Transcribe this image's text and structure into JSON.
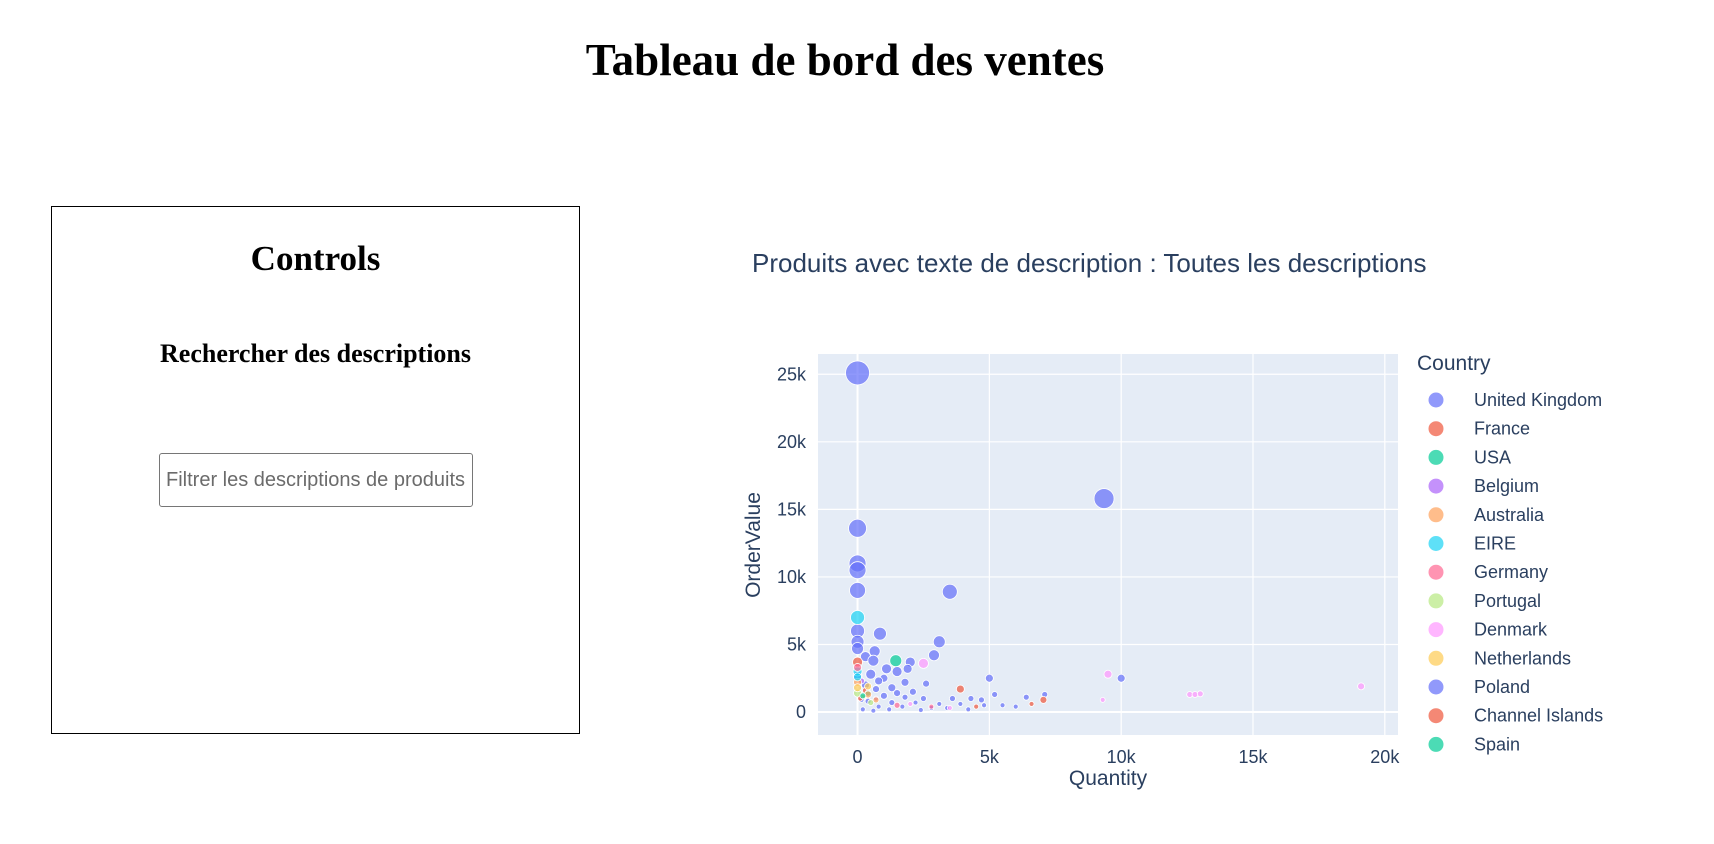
{
  "header": {
    "title": "Tableau de bord des ventes"
  },
  "controls": {
    "title": "Controls",
    "search_label": "Rechercher des descriptions",
    "search_placeholder": "Filtrer les descriptions de produits",
    "search_value": ""
  },
  "chart_data": {
    "type": "scatter",
    "title": "Produits avec texte de description : Toutes les descriptions",
    "xlabel": "Quantity",
    "ylabel": "OrderValue",
    "xlim": [
      -1500,
      20500
    ],
    "ylim": [
      -1700,
      26500
    ],
    "x_ticks": [
      0,
      5000,
      10000,
      15000,
      20000
    ],
    "x_tick_labels": [
      "0",
      "5k",
      "10k",
      "15k",
      "20k"
    ],
    "y_ticks": [
      0,
      5000,
      10000,
      15000,
      20000,
      25000
    ],
    "y_tick_labels": [
      "0",
      "5k",
      "10k",
      "15k",
      "20k",
      "25k"
    ],
    "grid": true,
    "legend_title": "Country",
    "legend_position": "right",
    "series": [
      {
        "name": "United Kingdom",
        "color": "#636efa",
        "points": [
          {
            "x": 0,
            "y": 25100,
            "s": 12
          },
          {
            "x": 9350,
            "y": 15800,
            "s": 10
          },
          {
            "x": 0,
            "y": 13600,
            "s": 9
          },
          {
            "x": 0,
            "y": 11000,
            "s": 8.5
          },
          {
            "x": 0,
            "y": 10500,
            "s": 8.5
          },
          {
            "x": 0,
            "y": 9000,
            "s": 8
          },
          {
            "x": 3500,
            "y": 8900,
            "s": 7.5
          },
          {
            "x": 0,
            "y": 6000,
            "s": 7
          },
          {
            "x": 850,
            "y": 5800,
            "s": 6.5
          },
          {
            "x": 0,
            "y": 5200,
            "s": 6.5
          },
          {
            "x": 3100,
            "y": 5200,
            "s": 6
          },
          {
            "x": 0,
            "y": 4700,
            "s": 6
          },
          {
            "x": 650,
            "y": 4500,
            "s": 5.5
          },
          {
            "x": 2900,
            "y": 4200,
            "s": 5.5
          },
          {
            "x": 300,
            "y": 4100,
            "s": 5
          },
          {
            "x": 600,
            "y": 3800,
            "s": 5.5
          },
          {
            "x": 2000,
            "y": 3700,
            "s": 5
          },
          {
            "x": 1100,
            "y": 3200,
            "s": 5
          },
          {
            "x": 1900,
            "y": 3200,
            "s": 4.5
          },
          {
            "x": 1500,
            "y": 3000,
            "s": 5
          },
          {
            "x": 500,
            "y": 2800,
            "s": 5
          },
          {
            "x": 0,
            "y": 2700,
            "s": 4.5
          },
          {
            "x": 1000,
            "y": 2500,
            "s": 4
          },
          {
            "x": 5000,
            "y": 2500,
            "s": 4
          },
          {
            "x": 10000,
            "y": 2500,
            "s": 4
          },
          {
            "x": 800,
            "y": 2300,
            "s": 4
          },
          {
            "x": 1800,
            "y": 2200,
            "s": 4
          },
          {
            "x": 2600,
            "y": 2100,
            "s": 3.5
          },
          {
            "x": 300,
            "y": 2000,
            "s": 4
          },
          {
            "x": 1300,
            "y": 1800,
            "s": 4
          },
          {
            "x": 700,
            "y": 1700,
            "s": 3.5
          },
          {
            "x": 2100,
            "y": 1500,
            "s": 3.5
          },
          {
            "x": 1500,
            "y": 1400,
            "s": 3.5
          },
          {
            "x": 5200,
            "y": 1300,
            "s": 3
          },
          {
            "x": 7100,
            "y": 1300,
            "s": 3
          },
          {
            "x": 1000,
            "y": 1200,
            "s": 3.5
          },
          {
            "x": 1800,
            "y": 1100,
            "s": 3
          },
          {
            "x": 2500,
            "y": 1000,
            "s": 3
          },
          {
            "x": 3600,
            "y": 1000,
            "s": 3
          },
          {
            "x": 4300,
            "y": 1000,
            "s": 3
          },
          {
            "x": 4700,
            "y": 900,
            "s": 3
          },
          {
            "x": 6400,
            "y": 1100,
            "s": 3
          },
          {
            "x": 400,
            "y": 800,
            "s": 3
          },
          {
            "x": 1300,
            "y": 700,
            "s": 3
          },
          {
            "x": 2200,
            "y": 700,
            "s": 2.5
          },
          {
            "x": 3100,
            "y": 600,
            "s": 2.5
          },
          {
            "x": 3900,
            "y": 600,
            "s": 2.5
          },
          {
            "x": 4800,
            "y": 500,
            "s": 2.5
          },
          {
            "x": 5500,
            "y": 500,
            "s": 2.5
          },
          {
            "x": 800,
            "y": 400,
            "s": 2.5
          },
          {
            "x": 1700,
            "y": 400,
            "s": 2.5
          },
          {
            "x": 2800,
            "y": 300,
            "s": 2.5
          },
          {
            "x": 3400,
            "y": 300,
            "s": 2.5
          },
          {
            "x": 6000,
            "y": 400,
            "s": 2.5
          },
          {
            "x": 200,
            "y": 200,
            "s": 2.5
          },
          {
            "x": 1200,
            "y": 200,
            "s": 2.5
          },
          {
            "x": 2400,
            "y": 150,
            "s": 2.5
          },
          {
            "x": 4200,
            "y": 200,
            "s": 2.5
          },
          {
            "x": 600,
            "y": 100,
            "s": 2.5
          }
        ]
      },
      {
        "name": "France",
        "color": "#EF553B",
        "points": [
          {
            "x": 0,
            "y": 3700,
            "s": 5
          },
          {
            "x": 3900,
            "y": 1700,
            "s": 4
          },
          {
            "x": 7050,
            "y": 900,
            "s": 3.5
          },
          {
            "x": 300,
            "y": 1600,
            "s": 3
          },
          {
            "x": 6600,
            "y": 600,
            "s": 2.5
          },
          {
            "x": 4500,
            "y": 400,
            "s": 2.5
          }
        ]
      },
      {
        "name": "USA",
        "color": "#00cc96",
        "points": [
          {
            "x": 1450,
            "y": 3800,
            "s": 6
          },
          {
            "x": 400,
            "y": 1400,
            "s": 3
          }
        ]
      },
      {
        "name": "Belgium",
        "color": "#ab63fa",
        "points": [
          {
            "x": 150,
            "y": 2300,
            "s": 3
          },
          {
            "x": 700,
            "y": 1000,
            "s": 2.5
          }
        ]
      },
      {
        "name": "Australia",
        "color": "#FFA15A",
        "points": [
          {
            "x": 0,
            "y": 2200,
            "s": 4
          },
          {
            "x": 400,
            "y": 1300,
            "s": 3.5
          },
          {
            "x": 700,
            "y": 900,
            "s": 3
          }
        ]
      },
      {
        "name": "EIRE",
        "color": "#19d3f3",
        "points": [
          {
            "x": 0,
            "y": 7000,
            "s": 7
          },
          {
            "x": 0,
            "y": 3000,
            "s": 4.5
          },
          {
            "x": 0,
            "y": 2600,
            "s": 4
          }
        ]
      },
      {
        "name": "Germany",
        "color": "#FF6692",
        "points": [
          {
            "x": 0,
            "y": 3300,
            "s": 4
          },
          {
            "x": 1500,
            "y": 500,
            "s": 3
          },
          {
            "x": 2800,
            "y": 400,
            "s": 2.5
          }
        ]
      },
      {
        "name": "Portugal",
        "color": "#B6E880",
        "points": [
          {
            "x": 0,
            "y": 1400,
            "s": 4
          },
          {
            "x": 500,
            "y": 700,
            "s": 3
          }
        ]
      },
      {
        "name": "Denmark",
        "color": "#FF97FF",
        "points": [
          {
            "x": 2500,
            "y": 3600,
            "s": 5
          },
          {
            "x": 9500,
            "y": 2800,
            "s": 4
          },
          {
            "x": 19100,
            "y": 1900,
            "s": 3.5
          },
          {
            "x": 12600,
            "y": 1300,
            "s": 3
          },
          {
            "x": 12800,
            "y": 1300,
            "s": 3
          },
          {
            "x": 13000,
            "y": 1350,
            "s": 3
          },
          {
            "x": 9300,
            "y": 900,
            "s": 2.5
          },
          {
            "x": 2000,
            "y": 600,
            "s": 2.5
          },
          {
            "x": 3500,
            "y": 300,
            "s": 2.5
          }
        ]
      },
      {
        "name": "Netherlands",
        "color": "#FECB52",
        "points": [
          {
            "x": 0,
            "y": 1800,
            "s": 4
          },
          {
            "x": 400,
            "y": 1900,
            "s": 3.5
          },
          {
            "x": 200,
            "y": 1100,
            "s": 3
          }
        ]
      },
      {
        "name": "Poland",
        "color": "#636efa",
        "points": [
          {
            "x": 150,
            "y": 900,
            "s": 2.5
          }
        ]
      },
      {
        "name": "Channel Islands",
        "color": "#EF553B",
        "points": [
          {
            "x": 100,
            "y": 1000,
            "s": 2.5
          }
        ]
      },
      {
        "name": "Spain",
        "color": "#00cc96",
        "points": [
          {
            "x": 200,
            "y": 1200,
            "s": 3
          }
        ]
      }
    ]
  }
}
